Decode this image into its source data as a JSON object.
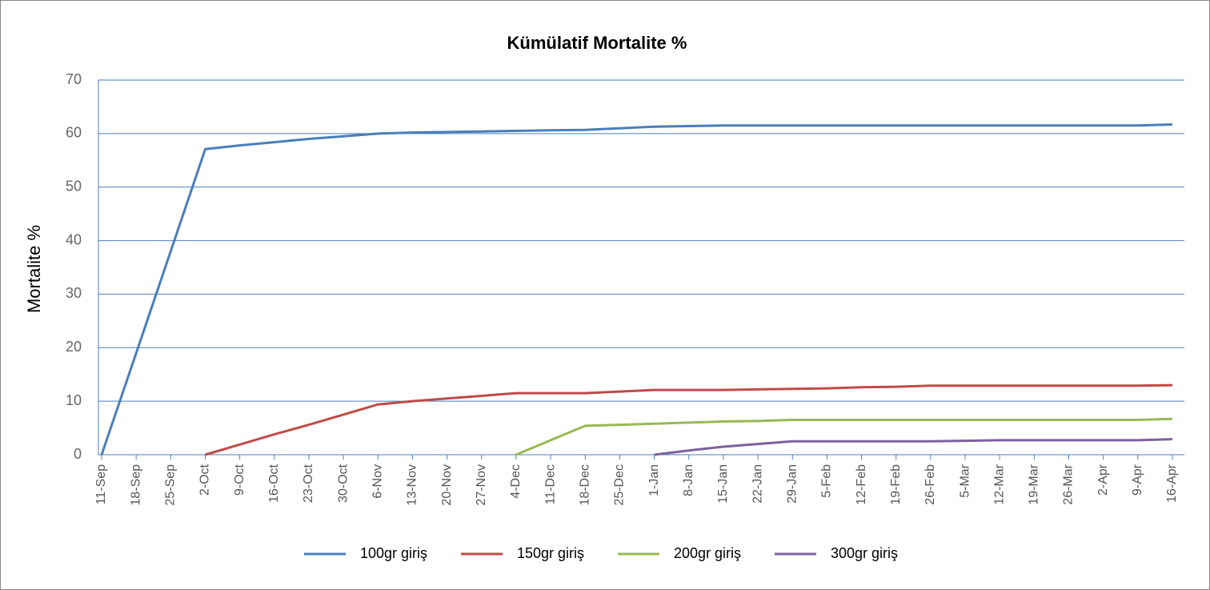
{
  "chart_data": {
    "type": "line",
    "title": "Kümülatif Mortalite %",
    "y_label": "Mortalite %",
    "categories": [
      "11-Sep",
      "18-Sep",
      "25-Sep",
      "2-Oct",
      "9-Oct",
      "16-Oct",
      "23-Oct",
      "30-Oct",
      "6-Nov",
      "13-Nov",
      "20-Nov",
      "27-Nov",
      "4-Dec",
      "11-Dec",
      "18-Dec",
      "25-Dec",
      "1-Jan",
      "8-Jan",
      "15-Jan",
      "22-Jan",
      "29-Jan",
      "5-Feb",
      "12-Feb",
      "19-Feb",
      "26-Feb",
      "5-Mar",
      "12-Mar",
      "19-Mar",
      "26-Mar",
      "2-Apr",
      "9-Apr",
      "16-Apr"
    ],
    "series": [
      {
        "name": "100gr giriş",
        "color": "#4a7ebb",
        "values": [
          0,
          19,
          38,
          57.1,
          57.8,
          58.4,
          59.0,
          59.5,
          60.0,
          60.2,
          60.3,
          60.4,
          60.5,
          60.6,
          60.7,
          61.0,
          61.3,
          61.4,
          61.5,
          61.5,
          61.5,
          61.5,
          61.5,
          61.5,
          61.5,
          61.5,
          61.5,
          61.5,
          61.5,
          61.5,
          61.5,
          61.7
        ]
      },
      {
        "name": "150gr giriş",
        "color": "#be4b48",
        "values": [
          null,
          null,
          null,
          0,
          1.9,
          3.8,
          5.6,
          7.5,
          9.4,
          10.0,
          10.5,
          11.0,
          11.5,
          11.5,
          11.5,
          11.8,
          12.1,
          12.1,
          12.1,
          12.2,
          12.3,
          12.4,
          12.6,
          12.7,
          12.9,
          12.9,
          12.9,
          12.9,
          12.9,
          12.9,
          12.9,
          13.0
        ]
      },
      {
        "name": "200gr giriş",
        "color": "#98b954",
        "values": [
          null,
          null,
          null,
          null,
          null,
          null,
          null,
          null,
          null,
          null,
          null,
          null,
          0,
          2.7,
          5.4,
          5.6,
          5.8,
          6.0,
          6.2,
          6.3,
          6.5,
          6.5,
          6.5,
          6.5,
          6.5,
          6.5,
          6.5,
          6.5,
          6.5,
          6.5,
          6.5,
          6.7
        ]
      },
      {
        "name": "300gr giriş",
        "color": "#7d60a0",
        "values": [
          null,
          null,
          null,
          null,
          null,
          null,
          null,
          null,
          null,
          null,
          null,
          null,
          null,
          null,
          null,
          null,
          0,
          0.8,
          1.5,
          2.0,
          2.5,
          2.5,
          2.5,
          2.5,
          2.5,
          2.6,
          2.7,
          2.7,
          2.7,
          2.7,
          2.7,
          2.9
        ]
      }
    ],
    "ylim": [
      0,
      70
    ],
    "yticks": [
      0,
      10,
      20,
      30,
      40,
      50,
      60,
      70
    ],
    "grid": true,
    "legend": "bottom"
  }
}
